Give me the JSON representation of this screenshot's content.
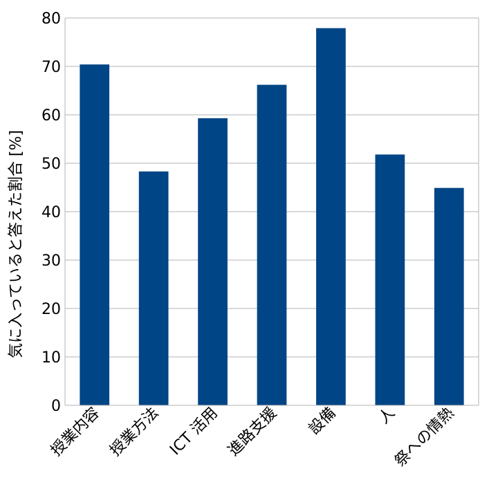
{
  "chart_data": {
    "type": "bar",
    "categories": [
      "授業内容",
      "授業方法",
      "ICT 活用",
      "進路支援",
      "設備",
      "人",
      "祭への情熱"
    ],
    "values": [
      70.4,
      48.3,
      59.3,
      66.2,
      77.9,
      51.8,
      44.9
    ],
    "xlabel": "",
    "ylabel": "気に入っていると答えた割合 [%]",
    "ylim": [
      0,
      80
    ],
    "yticks": [
      0,
      10,
      20,
      30,
      40,
      50,
      60,
      70,
      80
    ],
    "grid": true,
    "bar_color": "#004586",
    "grid_color": "#b3b3b3"
  }
}
